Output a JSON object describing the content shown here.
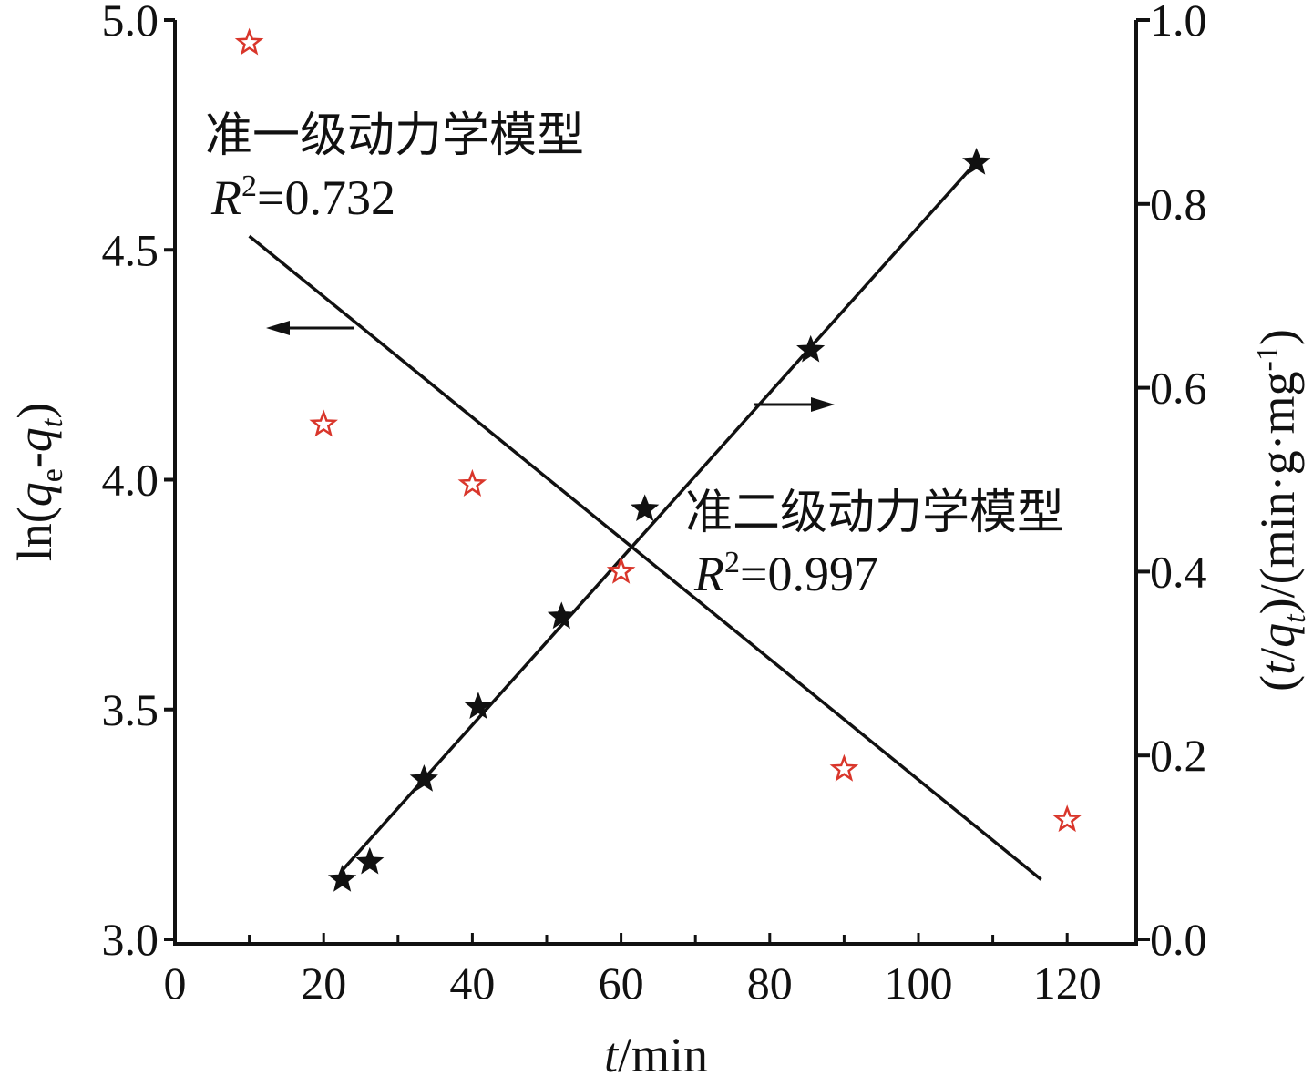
{
  "chart_data": {
    "type": "scatter",
    "x_axis": {
      "label_italic": "t",
      "label_rest": "/min",
      "range": [
        0,
        130
      ],
      "ticks": [
        "0",
        "20",
        "40",
        "60",
        "80",
        "100",
        "120"
      ]
    },
    "y_left": {
      "label_prefix": "ln(",
      "label_q1": "q",
      "label_sub1": "e",
      "label_dash": "-",
      "label_q2": "q",
      "label_sub2": "t",
      "label_suffix": ")",
      "range": [
        3.0,
        5.0
      ],
      "ticks": [
        "3.0",
        "3.5",
        "4.0",
        "4.5",
        "5.0"
      ]
    },
    "y_right": {
      "label_open": "(",
      "label_t": "t",
      "label_slash": "/",
      "label_q": "q",
      "label_sub": "t",
      "label_mid": ")/(min·g·mg",
      "label_sup": "-1",
      "label_close": ")",
      "range": [
        0.0,
        1.0
      ],
      "ticks": [
        "0.0",
        "0.2",
        "0.4",
        "0.6",
        "0.8",
        "1.0"
      ]
    },
    "series": [
      {
        "axis": "left",
        "marker": "hollow-star",
        "color": "#d9362b",
        "x": [
          10,
          20,
          40,
          60,
          90,
          120
        ],
        "y": [
          4.95,
          4.12,
          3.99,
          3.8,
          3.37,
          3.26
        ]
      },
      {
        "axis": "right",
        "marker": "filled-star",
        "color": "#111111",
        "x": [
          22.5,
          26.2,
          33.5,
          40.8,
          52.0,
          63.2,
          85.5,
          107.8
        ],
        "y": [
          0.065,
          0.084,
          0.174,
          0.253,
          0.351,
          0.468,
          0.641,
          0.845
        ]
      }
    ],
    "fits": [
      {
        "axis": "left",
        "x": [
          10,
          116.5
        ],
        "y": [
          4.53,
          3.13
        ]
      },
      {
        "axis": "right",
        "x": [
          22.5,
          107.5
        ],
        "y": [
          0.075,
          0.843
        ]
      }
    ],
    "annotations": [
      {
        "title": "准一级动力学模型",
        "r_label": "R",
        "r_sup": "2",
        "r_value": "=0.732"
      },
      {
        "title": "准二级动力学模型",
        "r_label": "R",
        "r_sup": "2",
        "r_value": "=0.997"
      }
    ]
  }
}
